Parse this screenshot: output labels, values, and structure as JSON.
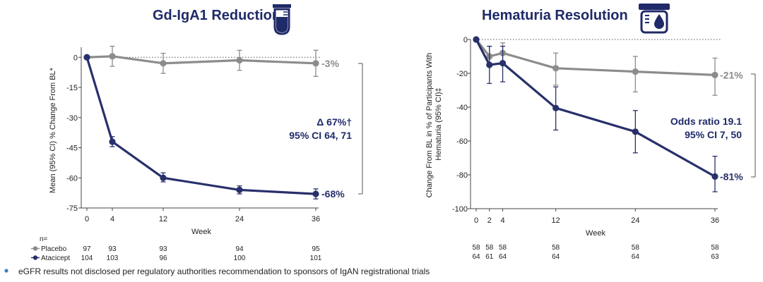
{
  "colors": {
    "placebo": "#8c8c8c",
    "atacicept": "#28306c",
    "title": "#1f2a68",
    "text": "#222222"
  },
  "footnote": "eGFR results not disclosed per regulatory authorities recommendation to sponsors of IgAN registrational trials",
  "chart_data": [
    {
      "type": "line",
      "title": "Gd-IgA1 Reduction",
      "title_icon": "test-tube-icon",
      "xlabel": "Week",
      "ylabel": "Mean (95% CI) % Change From BL*",
      "x_ticks": [
        0,
        4,
        12,
        24,
        36
      ],
      "y_ticks": [
        0,
        -15,
        -30,
        -45,
        -60,
        -75
      ],
      "xlim": [
        0,
        36
      ],
      "ylim": [
        -75,
        5
      ],
      "reference_line_y": 0,
      "annotation": [
        "Δ 67%†",
        "95% CI 64, 71"
      ],
      "series": [
        {
          "name": "Placebo",
          "color": "#8c8c8c",
          "x": [
            0,
            4,
            12,
            24,
            36
          ],
          "values": [
            0,
            0.5,
            -3,
            -1.5,
            -3
          ],
          "ci_low": [
            0,
            -4.5,
            -8,
            -6.5,
            -9.5
          ],
          "ci_high": [
            0,
            5.5,
            2,
            3.5,
            3.5
          ],
          "end_label": "-3%"
        },
        {
          "name": "Atacicept",
          "color": "#28306c",
          "x": [
            0,
            4,
            12,
            24,
            36
          ],
          "values": [
            0,
            -42,
            -60,
            -66,
            -68
          ],
          "ci_low": [
            0,
            -44.5,
            -62,
            -68,
            -70.5
          ],
          "ci_high": [
            0,
            -39.5,
            -57.5,
            -64,
            -65.5
          ],
          "end_label": "-68%"
        }
      ],
      "n_table": {
        "header": "n=",
        "x": [
          0,
          4,
          12,
          24,
          36
        ],
        "rows": [
          {
            "label": "Placebo",
            "values": [
              "97",
              "93",
              "93",
              "94",
              "95"
            ]
          },
          {
            "label": "Atacicept",
            "values": [
              "104",
              "103",
              "96",
              "100",
              "101"
            ]
          }
        ]
      }
    },
    {
      "type": "line",
      "title": "Hematuria Resolution",
      "title_icon": "urine-cup-icon",
      "xlabel": "Week",
      "ylabel": "Change From BL in % of Participants With Hematuria (95% CI)‡",
      "x_ticks": [
        0,
        2,
        4,
        12,
        24,
        36
      ],
      "y_ticks": [
        0,
        -20,
        -40,
        -60,
        -80,
        -100
      ],
      "xlim": [
        0,
        36
      ],
      "ylim": [
        -100,
        0
      ],
      "reference_line_y": 0,
      "annotation": [
        "Odds ratio 19.1",
        "95% CI 7, 50"
      ],
      "series": [
        {
          "name": "Placebo",
          "color": "#8c8c8c",
          "x": [
            0,
            2,
            4,
            12,
            24,
            36
          ],
          "values": [
            0,
            -10,
            -8,
            -17,
            -19,
            -21
          ],
          "ci_low": [
            0,
            -16,
            -14,
            -27,
            -31,
            -33
          ],
          "ci_high": [
            0,
            -4,
            -2,
            -8,
            -10,
            -11
          ],
          "end_label": "-21%"
        },
        {
          "name": "Atacicept",
          "color": "#28306c",
          "x": [
            0,
            2,
            4,
            12,
            24,
            36
          ],
          "values": [
            0,
            -15,
            -14,
            -40.5,
            -54.5,
            -81
          ],
          "ci_low": [
            0,
            -26,
            -25,
            -53.5,
            -67,
            -90
          ],
          "ci_high": [
            0,
            -4,
            -4,
            -28,
            -42,
            -69
          ],
          "end_label": "-81%"
        }
      ],
      "n_table": {
        "header": "",
        "x": [
          0,
          2,
          4,
          12,
          24,
          36
        ],
        "rows": [
          {
            "label": "",
            "values": [
              "58",
              "58",
              "58",
              "58",
              "58",
              "58"
            ]
          },
          {
            "label": "",
            "values": [
              "64",
              "61",
              "64",
              "64",
              "64",
              "63"
            ]
          }
        ]
      }
    }
  ]
}
